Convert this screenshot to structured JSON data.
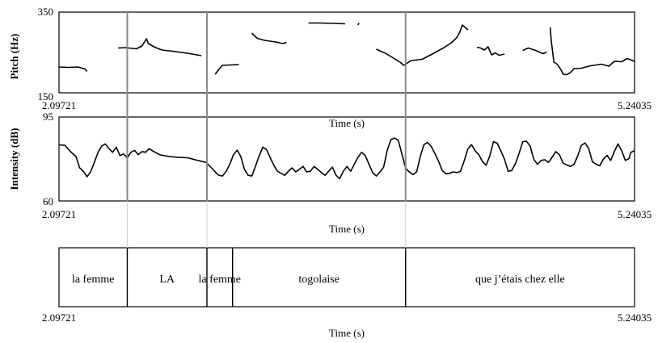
{
  "chart_data": {
    "type": "line",
    "time_range": [
      2.09721,
      5.24035
    ],
    "x_tick_labels": [
      "2.09721",
      "5.24035"
    ],
    "time_label": "Time (s)",
    "pitch": {
      "ylabel": "Pitch (Hz)",
      "ylim": [
        150,
        350
      ],
      "ytick_labels": [
        "150",
        "350"
      ],
      "segments": [
        [
          [
            2.097,
            214
          ],
          [
            2.15,
            213
          ],
          [
            2.2,
            214
          ],
          [
            2.24,
            209
          ],
          [
            2.25,
            203
          ]
        ],
        [
          [
            2.42,
            261
          ],
          [
            2.46,
            262
          ],
          [
            2.52,
            259
          ],
          [
            2.55,
            266
          ],
          [
            2.575,
            284
          ],
          [
            2.585,
            272
          ],
          [
            2.62,
            263
          ],
          [
            2.66,
            256
          ],
          [
            2.72,
            253
          ],
          [
            2.8,
            248
          ],
          [
            2.875,
            242
          ]
        ],
        [
          [
            2.95,
            196
          ],
          [
            2.97,
            208
          ],
          [
            2.99,
            218
          ],
          [
            3.08,
            220
          ]
        ],
        [
          [
            3.15,
            298
          ],
          [
            3.18,
            285
          ],
          [
            3.22,
            280
          ],
          [
            3.28,
            276
          ],
          [
            3.32,
            272
          ],
          [
            3.34,
            275
          ]
        ],
        [
          [
            3.46,
            323
          ],
          [
            3.52,
            323
          ],
          [
            3.6,
            322
          ],
          [
            3.66,
            321
          ]
        ],
        [
          [
            3.73,
            318
          ],
          [
            3.735,
            323
          ]
        ],
        [
          [
            3.83,
            258
          ],
          [
            3.88,
            248
          ],
          [
            3.92,
            237
          ],
          [
            3.96,
            226
          ],
          [
            3.98,
            218
          ],
          [
            4.02,
            230
          ],
          [
            4.08,
            233
          ],
          [
            4.14,
            247
          ],
          [
            4.2,
            262
          ],
          [
            4.24,
            274
          ],
          [
            4.27,
            287
          ],
          [
            4.285,
            300
          ],
          [
            4.3,
            318
          ],
          [
            4.33,
            306
          ]
        ],
        [
          [
            4.38,
            263
          ],
          [
            4.4,
            261
          ],
          [
            4.42,
            256
          ],
          [
            4.44,
            264
          ],
          [
            4.46,
            244
          ],
          [
            4.48,
            249
          ],
          [
            4.5,
            243
          ],
          [
            4.53,
            246
          ]
        ],
        [
          [
            4.63,
            255
          ],
          [
            4.66,
            261
          ],
          [
            4.7,
            255
          ],
          [
            4.74,
            247
          ],
          [
            4.76,
            251
          ]
        ],
        [
          [
            4.78,
            312
          ],
          [
            4.785,
            280
          ],
          [
            4.8,
            226
          ],
          [
            4.82,
            220
          ],
          [
            4.84,
            206
          ],
          [
            4.85,
            196
          ],
          [
            4.87,
            195
          ],
          [
            4.89,
            200
          ],
          [
            4.91,
            210
          ],
          [
            4.95,
            211
          ],
          [
            5.0,
            217
          ],
          [
            5.06,
            221
          ],
          [
            5.1,
            216
          ],
          [
            5.13,
            228
          ],
          [
            5.17,
            227
          ],
          [
            5.2,
            235
          ],
          [
            5.24,
            228
          ]
        ]
      ]
    },
    "intensity": {
      "ylabel": "Intensity (dB)",
      "ylim": [
        60,
        95
      ],
      "ytick_labels": [
        "60",
        "95"
      ],
      "points": [
        [
          2.097,
          83.4
        ],
        [
          2.13,
          83.2
        ],
        [
          2.16,
          80.6
        ],
        [
          2.19,
          78.5
        ],
        [
          2.21,
          73.8
        ],
        [
          2.23,
          72.4
        ],
        [
          2.25,
          70.1
        ],
        [
          2.27,
          72.1
        ],
        [
          2.29,
          76.1
        ],
        [
          2.31,
          80.2
        ],
        [
          2.33,
          82.9
        ],
        [
          2.35,
          83.8
        ],
        [
          2.37,
          81.8
        ],
        [
          2.39,
          80.3
        ],
        [
          2.41,
          82.4
        ],
        [
          2.43,
          78.9
        ],
        [
          2.45,
          79.6
        ],
        [
          2.47,
          78.0
        ],
        [
          2.49,
          80.3
        ],
        [
          2.51,
          81.1
        ],
        [
          2.53,
          79.3
        ],
        [
          2.55,
          80.6
        ],
        [
          2.57,
          80.3
        ],
        [
          2.59,
          81.8
        ],
        [
          2.61,
          80.8
        ],
        [
          2.65,
          79.2
        ],
        [
          2.7,
          78.5
        ],
        [
          2.75,
          78.2
        ],
        [
          2.8,
          78.0
        ],
        [
          2.85,
          77.0
        ],
        [
          2.9,
          76.1
        ],
        [
          2.93,
          73.8
        ],
        [
          2.95,
          72.1
        ],
        [
          2.97,
          70.7
        ],
        [
          2.99,
          70.4
        ],
        [
          3.01,
          72.4
        ],
        [
          3.03,
          75.3
        ],
        [
          3.05,
          79.3
        ],
        [
          3.07,
          81.2
        ],
        [
          3.09,
          78.5
        ],
        [
          3.11,
          73.2
        ],
        [
          3.13,
          70.7
        ],
        [
          3.15,
          70.4
        ],
        [
          3.17,
          74.4
        ],
        [
          3.19,
          78.7
        ],
        [
          3.21,
          82.4
        ],
        [
          3.23,
          81.5
        ],
        [
          3.25,
          78.2
        ],
        [
          3.27,
          74.9
        ],
        [
          3.29,
          72.4
        ],
        [
          3.31,
          71.5
        ],
        [
          3.33,
          70.7
        ],
        [
          3.35,
          72.4
        ],
        [
          3.37,
          73.8
        ],
        [
          3.39,
          72.1
        ],
        [
          3.41,
          73.2
        ],
        [
          3.43,
          74.4
        ],
        [
          3.45,
          72.1
        ],
        [
          3.47,
          72.4
        ],
        [
          3.49,
          74.4
        ],
        [
          3.51,
          73.2
        ],
        [
          3.53,
          71.8
        ],
        [
          3.55,
          70.7
        ],
        [
          3.57,
          72.4
        ],
        [
          3.59,
          74.1
        ],
        [
          3.61,
          70.7
        ],
        [
          3.63,
          69.3
        ],
        [
          3.65,
          72.4
        ],
        [
          3.67,
          74.4
        ],
        [
          3.69,
          72.4
        ],
        [
          3.71,
          75.3
        ],
        [
          3.73,
          78.2
        ],
        [
          3.75,
          80.3
        ],
        [
          3.77,
          78.9
        ],
        [
          3.79,
          75.3
        ],
        [
          3.81,
          71.8
        ],
        [
          3.83,
          70.4
        ],
        [
          3.85,
          72.1
        ],
        [
          3.87,
          74.1
        ],
        [
          3.89,
          81.2
        ],
        [
          3.91,
          85.6
        ],
        [
          3.93,
          86.2
        ],
        [
          3.95,
          85.3
        ],
        [
          3.97,
          79.6
        ],
        [
          3.99,
          73.6
        ],
        [
          4.01,
          72.1
        ],
        [
          4.03,
          71.0
        ],
        [
          4.05,
          72.1
        ],
        [
          4.07,
          78.5
        ],
        [
          4.09,
          83.5
        ],
        [
          4.11,
          84.4
        ],
        [
          4.13,
          82.7
        ],
        [
          4.15,
          79.8
        ],
        [
          4.17,
          76.6
        ],
        [
          4.19,
          72.7
        ],
        [
          4.21,
          71.3
        ],
        [
          4.23,
          71.5
        ],
        [
          4.25,
          72.1
        ],
        [
          4.27,
          71.8
        ],
        [
          4.29,
          72.4
        ],
        [
          4.31,
          76.8
        ],
        [
          4.33,
          81.7
        ],
        [
          4.35,
          83.5
        ],
        [
          4.37,
          80.9
        ],
        [
          4.39,
          79.3
        ],
        [
          4.41,
          76.4
        ],
        [
          4.43,
          74.9
        ],
        [
          4.45,
          78.8
        ],
        [
          4.47,
          84.7
        ],
        [
          4.49,
          84.1
        ],
        [
          4.51,
          80.9
        ],
        [
          4.53,
          77.4
        ],
        [
          4.55,
          72.4
        ],
        [
          4.57,
          72.7
        ],
        [
          4.59,
          75.6
        ],
        [
          4.61,
          79.9
        ],
        [
          4.63,
          84.7
        ],
        [
          4.65,
          84.9
        ],
        [
          4.67,
          82.9
        ],
        [
          4.69,
          77.4
        ],
        [
          4.71,
          75.3
        ],
        [
          4.73,
          76.9
        ],
        [
          4.75,
          77.2
        ],
        [
          4.77,
          76.1
        ],
        [
          4.79,
          78.2
        ],
        [
          4.81,
          80.6
        ],
        [
          4.83,
          79.3
        ],
        [
          4.85,
          75.9
        ],
        [
          4.87,
          75.0
        ],
        [
          4.89,
          74.4
        ],
        [
          4.91,
          75.3
        ],
        [
          4.93,
          78.8
        ],
        [
          4.95,
          83.2
        ],
        [
          4.97,
          84.2
        ],
        [
          4.99,
          81.8
        ],
        [
          5.01,
          76.4
        ],
        [
          5.03,
          75.3
        ],
        [
          5.05,
          74.7
        ],
        [
          5.07,
          77.4
        ],
        [
          5.09,
          79.0
        ],
        [
          5.11,
          76.9
        ],
        [
          5.13,
          80.6
        ],
        [
          5.15,
          83.8
        ],
        [
          5.17,
          80.9
        ],
        [
          5.19,
          76.9
        ],
        [
          5.21,
          77.7
        ],
        [
          5.22,
          80.3
        ],
        [
          5.24,
          80.9
        ]
      ]
    },
    "boundaries": [
      2.47,
      2.905,
      3.99
    ],
    "word_boundaries": [
      2.47,
      2.905,
      3.045,
      3.99
    ],
    "words": [
      {
        "text": "la femme",
        "start": 2.09721,
        "end": 2.47
      },
      {
        "text": "LA",
        "start": 2.47,
        "end": 2.905
      },
      {
        "text": "la femme",
        "start": 2.905,
        "end": 3.045
      },
      {
        "text": "togolaise",
        "start": 3.045,
        "end": 3.99
      },
      {
        "text": "que j’étais chez elle",
        "start": 3.99,
        "end": 5.24035
      }
    ]
  }
}
